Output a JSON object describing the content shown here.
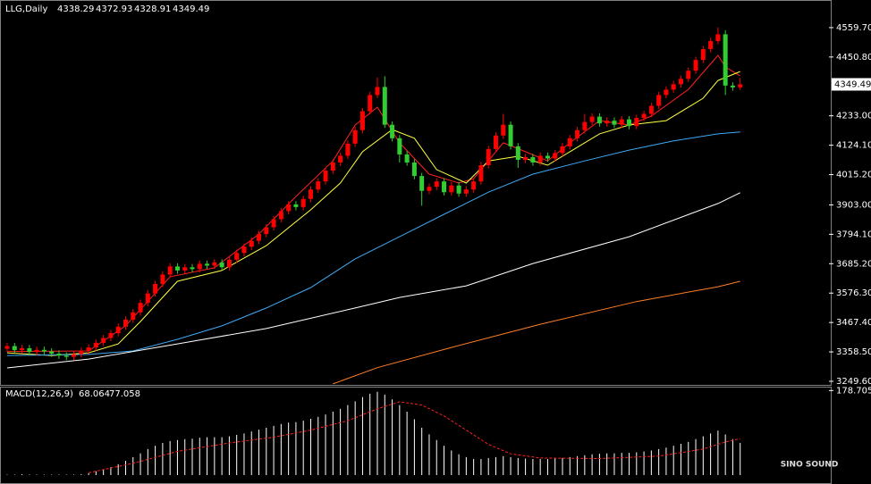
{
  "chart_data": {
    "type": "candlestick",
    "symbol": "LLG,Daily",
    "header_ohlc": [
      4338.29,
      4372.93,
      4328.91,
      4349.49
    ],
    "up_color": "#ff0000",
    "down_color": "#32cd32",
    "grid": false,
    "ylim": [
      3233,
      4662
    ],
    "yticks": [
      {
        "value": 4559.7,
        "label": "4559.70"
      },
      {
        "value": 4450.8,
        "label": "4450.80"
      },
      {
        "value": 4233,
        "label": "4233.00"
      },
      {
        "value": 4124.1,
        "label": "4124.10"
      },
      {
        "value": 4015.2,
        "label": "4015.20"
      },
      {
        "value": 3903,
        "label": "3903.00"
      },
      {
        "value": 3794.1,
        "label": "3794.10"
      },
      {
        "value": 3685.2,
        "label": "3685.20"
      },
      {
        "value": 3576.3,
        "label": "3576.30"
      },
      {
        "value": 3467.4,
        "label": "3467.40"
      },
      {
        "value": 3358.5,
        "label": "3358.50"
      },
      {
        "value": 3249.6,
        "label": "3249.60"
      }
    ],
    "open": [
      3370,
      3380,
      3365,
      3372,
      3358,
      3366,
      3360,
      3352,
      3345,
      3340,
      3350,
      3362,
      3375,
      3392,
      3410,
      3428,
      3452,
      3478,
      3505,
      3540,
      3575,
      3610,
      3645,
      3675,
      3660,
      3672,
      3665,
      3685,
      3678,
      3690,
      3672,
      3700,
      3725,
      3748,
      3770,
      3795,
      3820,
      3850,
      3880,
      3905,
      3895,
      3925,
      3960,
      3990,
      4030,
      4060,
      4085,
      4130,
      4180,
      4250,
      4310,
      4340,
      4200,
      4150,
      4090,
      4060,
      4010,
      3955,
      3970,
      3990,
      3950,
      3975,
      3945,
      3960,
      3990,
      4050,
      4110,
      4160,
      4200,
      4120,
      4070,
      4080,
      4060,
      4085,
      4075,
      4095,
      4120,
      4150,
      4180,
      4210,
      4230,
      4205,
      4215,
      4200,
      4220,
      4195,
      4225,
      4240,
      4270,
      4310,
      4330,
      4350,
      4370,
      4400,
      4440,
      4480,
      4510,
      4535,
      4345,
      4338.29
    ],
    "high": [
      3392,
      3392,
      3384,
      3384,
      3378,
      3378,
      3372,
      3364,
      3357,
      3362,
      3374,
      3387,
      3404,
      3422,
      3440,
      3464,
      3490,
      3517,
      3552,
      3587,
      3622,
      3657,
      3687,
      3687,
      3684,
      3684,
      3697,
      3697,
      3702,
      3702,
      3712,
      3737,
      3760,
      3782,
      3807,
      3832,
      3862,
      3892,
      3917,
      3917,
      3937,
      3972,
      4002,
      4042,
      4072,
      4097,
      4142,
      4192,
      4262,
      4322,
      4375,
      4380,
      4212,
      4162,
      4102,
      4072,
      4022,
      3982,
      4002,
      4002,
      3987,
      3987,
      3972,
      4002,
      4062,
      4122,
      4172,
      4240,
      4212,
      4132,
      4092,
      4092,
      4097,
      4097,
      4107,
      4132,
      4162,
      4192,
      4240,
      4242,
      4242,
      4227,
      4227,
      4232,
      4232,
      4237,
      4252,
      4282,
      4322,
      4342,
      4362,
      4382,
      4412,
      4452,
      4492,
      4522,
      4560,
      4550,
      4357,
      4372.93
    ],
    "low": [
      3358,
      3353,
      3353,
      3346,
      3346,
      3348,
      3340,
      3333,
      3328,
      3328,
      3338,
      3350,
      3363,
      3380,
      3398,
      3416,
      3440,
      3466,
      3493,
      3528,
      3563,
      3598,
      3633,
      3648,
      3648,
      3653,
      3653,
      3666,
      3666,
      3660,
      3660,
      3688,
      3713,
      3736,
      3758,
      3783,
      3808,
      3838,
      3868,
      3883,
      3883,
      3913,
      3948,
      3978,
      4018,
      4048,
      4073,
      4118,
      4168,
      4238,
      4298,
      4188,
      4138,
      4060,
      4048,
      3998,
      3900,
      3943,
      3958,
      3938,
      3938,
      3933,
      3933,
      3948,
      3978,
      4038,
      4098,
      4148,
      4108,
      4040,
      4058,
      4048,
      4048,
      4063,
      4063,
      4083,
      4108,
      4138,
      4168,
      4198,
      4193,
      4193,
      4188,
      4188,
      4183,
      4183,
      4213,
      4228,
      4258,
      4298,
      4318,
      4338,
      4358,
      4388,
      4428,
      4468,
      4498,
      4310,
      4326,
      4328.91
    ],
    "close": [
      3380,
      3365,
      3372,
      3358,
      3366,
      3360,
      3352,
      3345,
      3340,
      3350,
      3362,
      3375,
      3392,
      3410,
      3428,
      3452,
      3478,
      3505,
      3540,
      3575,
      3610,
      3645,
      3675,
      3660,
      3672,
      3665,
      3685,
      3678,
      3690,
      3672,
      3700,
      3725,
      3748,
      3770,
      3795,
      3820,
      3850,
      3880,
      3905,
      3895,
      3925,
      3960,
      3990,
      4030,
      4060,
      4085,
      4130,
      4180,
      4250,
      4310,
      4340,
      4200,
      4150,
      4090,
      4060,
      4010,
      3955,
      3970,
      3990,
      3950,
      3975,
      3945,
      3960,
      3990,
      4050,
      4110,
      4160,
      4200,
      4120,
      4070,
      4080,
      4060,
      4085,
      4075,
      4095,
      4120,
      4150,
      4180,
      4210,
      4230,
      4205,
      4215,
      4200,
      4220,
      4195,
      4225,
      4240,
      4270,
      4310,
      4330,
      4350,
      4370,
      4400,
      4440,
      4480,
      4510,
      4535,
      4345,
      4338.29,
      4349.49
    ],
    "ma_lines": [
      {
        "color": "#ff2020",
        "x": [
          0,
          11,
          16,
          22,
          28,
          34,
          39,
          44,
          47,
          50,
          53,
          57,
          61,
          63,
          67,
          70,
          73,
          76,
          80,
          84,
          87,
          92,
          96,
          97,
          99
        ],
        "values": [
          3360,
          3362,
          3455,
          3637,
          3670,
          3795,
          3934,
          4066,
          4199,
          4265,
          4133,
          4017,
          3984,
          4000,
          4133,
          4100,
          4066,
          4133,
          4215,
          4199,
          4232,
          4331,
          4457,
          4414,
          4381
        ]
      },
      {
        "color": "#ffff40",
        "x": [
          0,
          6,
          11,
          15,
          18,
          23,
          29,
          35,
          41,
          45,
          48,
          52,
          55,
          58,
          62,
          65,
          69,
          73,
          76,
          80,
          84,
          89,
          94,
          96,
          99
        ],
        "values": [
          3355,
          3345,
          3355,
          3388,
          3471,
          3620,
          3660,
          3752,
          3885,
          3984,
          4100,
          4182,
          4150,
          4034,
          3984,
          4066,
          4083,
          4050,
          4100,
          4166,
          4199,
          4215,
          4298,
          4364,
          4397
        ]
      },
      {
        "color": "#3fa9f5",
        "x": [
          0,
          11,
          17,
          23,
          29,
          35,
          41,
          47,
          53,
          59,
          65,
          71,
          78,
          84,
          90,
          96,
          99
        ],
        "values": [
          3345,
          3349,
          3362,
          3405,
          3455,
          3521,
          3597,
          3703,
          3785,
          3868,
          3950,
          4017,
          4066,
          4106,
          4140,
          4166,
          4173
        ]
      },
      {
        "color": "#ffffff",
        "x": [
          0,
          11,
          23,
          35,
          47,
          53,
          62,
          71,
          84,
          96,
          99
        ],
        "values": [
          3299,
          3332,
          3388,
          3445,
          3521,
          3560,
          3603,
          3686,
          3785,
          3908,
          3948
        ]
      },
      {
        "color": "#ff7f27",
        "x": [
          44,
          50,
          60,
          72,
          85,
          96,
          99
        ],
        "values": [
          3240,
          3300,
          3375,
          3461,
          3545,
          3600,
          3620
        ]
      }
    ],
    "macd": {
      "type": "bar",
      "label": "MACD(12,26,9)",
      "header_values": [
        68.064,
        77.058
      ],
      "color": "#ffffff",
      "ylim": [
        0,
        185
      ],
      "yticks": [
        178.705
      ],
      "histogram": [
        1,
        1,
        2,
        1,
        1,
        1,
        1,
        1,
        1,
        1,
        2,
        4,
        8,
        12,
        17,
        23,
        30,
        38,
        46,
        55,
        62,
        68,
        72,
        74,
        76,
        77,
        79,
        80,
        80,
        80,
        82,
        85,
        88,
        92,
        96,
        100,
        104,
        108,
        111,
        112,
        115,
        119,
        123,
        128,
        134,
        140,
        148,
        156,
        165,
        172,
        176,
        170,
        160,
        148,
        134,
        118,
        100,
        86,
        74,
        62,
        52,
        44,
        38,
        34,
        34,
        36,
        38,
        40,
        38,
        36,
        35,
        34,
        34,
        34,
        35,
        36,
        38,
        40,
        42,
        44,
        45,
        46,
        46,
        47,
        47,
        48,
        50,
        52,
        55,
        58,
        62,
        66,
        70,
        76,
        82,
        88,
        94,
        86,
        76,
        68.064
      ],
      "signal": {
        "color": "#ff2020",
        "x": [
          11,
          17,
          23,
          30,
          36,
          41,
          46,
          50,
          53,
          56,
          59,
          62,
          65,
          68,
          72,
          80,
          88,
          94,
          97,
          99
        ],
        "values": [
          5,
          25,
          50,
          68,
          80,
          95,
          115,
          140,
          155,
          148,
          125,
          95,
          65,
          45,
          36,
          35,
          40,
          55,
          70,
          77.058
        ]
      }
    },
    "watermark": "SINO SOUND"
  }
}
